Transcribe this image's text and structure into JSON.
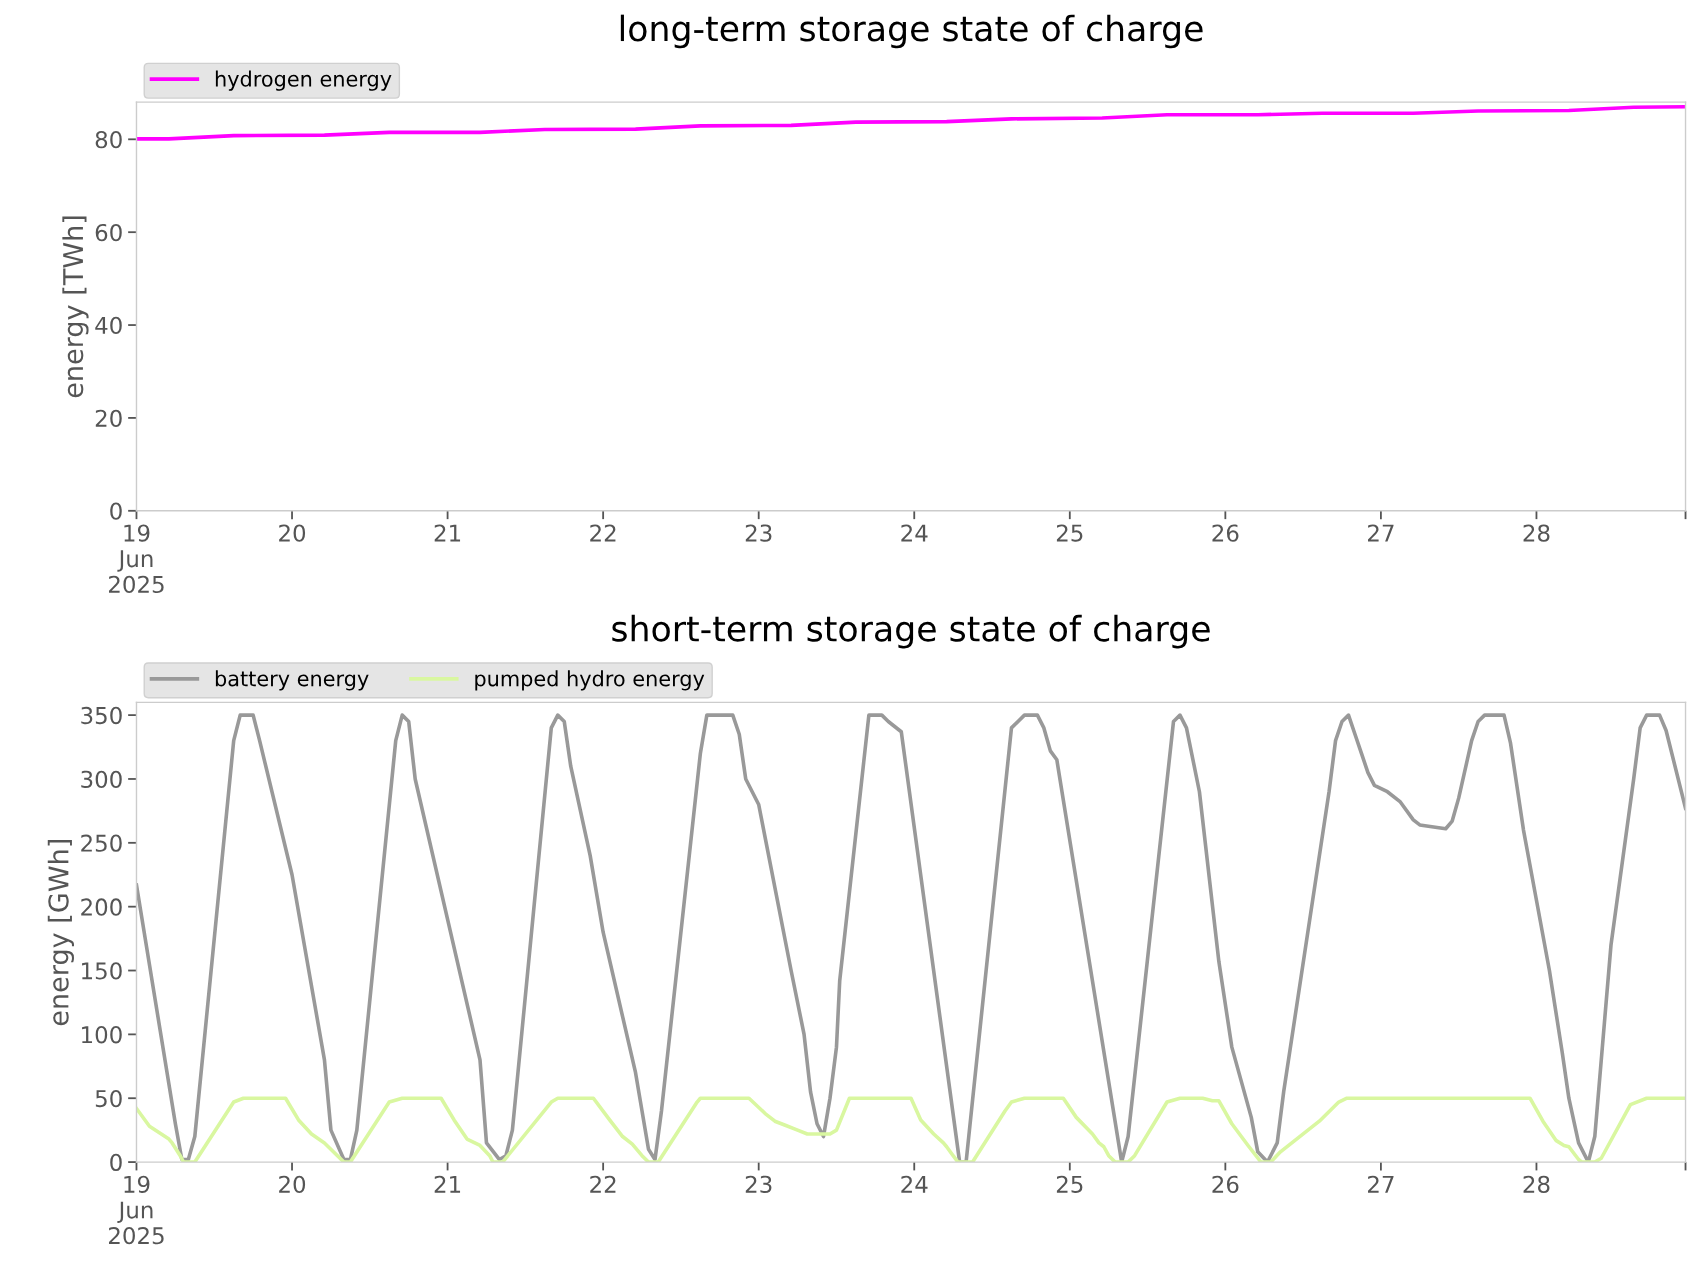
{
  "chart_data": [
    {
      "type": "line",
      "title": "long-term storage state of charge",
      "ylabel": "energy [TWh]",
      "legend": "top left",
      "xlim": [
        "2025-06-19",
        "2025-06-28T23:00"
      ],
      "xticks": [
        {
          "value": "2025-06-19",
          "label": "19\nJun\n2025"
        },
        {
          "value": "2025-06-20",
          "label": "20"
        },
        {
          "value": "2025-06-21",
          "label": "21"
        },
        {
          "value": "2025-06-22",
          "label": "22"
        },
        {
          "value": "2025-06-23",
          "label": "23"
        },
        {
          "value": "2025-06-24",
          "label": "24"
        },
        {
          "value": "2025-06-25",
          "label": "25"
        },
        {
          "value": "2025-06-26",
          "label": "26"
        },
        {
          "value": "2025-06-27",
          "label": "27"
        },
        {
          "value": "2025-06-28",
          "label": "28"
        },
        {
          "value": "2025-06-28T23:00",
          "label": null
        }
      ],
      "ylim": [
        0,
        88
      ],
      "yticks": [
        0,
        20,
        40,
        60,
        80
      ],
      "grid": false,
      "series": [
        {
          "name": "hydrogen energy",
          "color": "#ff00ff",
          "x": [
            "2025-06-19T00:00",
            "2025-06-19T05:00",
            "2025-06-19T15:00",
            "2025-06-20T05:00",
            "2025-06-20T15:00",
            "2025-06-21T05:00",
            "2025-06-21T15:00",
            "2025-06-22T05:00",
            "2025-06-22T15:00",
            "2025-06-23T05:00",
            "2025-06-23T15:00",
            "2025-06-24T05:00",
            "2025-06-24T15:00",
            "2025-06-25T05:00",
            "2025-06-25T15:00",
            "2025-06-26T05:00",
            "2025-06-26T15:00",
            "2025-06-27T05:00",
            "2025-06-27T15:00",
            "2025-06-28T05:00",
            "2025-06-28T15:00",
            "2025-06-28T23:00"
          ],
          "values": [
            80.1,
            80.1,
            80.8,
            80.9,
            81.5,
            81.5,
            82.1,
            82.2,
            82.9,
            83.0,
            83.7,
            83.8,
            84.4,
            84.6,
            85.3,
            85.3,
            85.6,
            85.6,
            86.1,
            86.2,
            86.9,
            87.0
          ]
        }
      ]
    },
    {
      "type": "line",
      "title": "short-term storage state of charge",
      "ylabel": "energy [GWh]",
      "legend": "top left",
      "xlim": [
        "2025-06-19",
        "2025-06-28T23:00"
      ],
      "xticks": [
        {
          "value": "2025-06-19",
          "label": "19\nJun\n2025"
        },
        {
          "value": "2025-06-20",
          "label": "20"
        },
        {
          "value": "2025-06-21",
          "label": "21"
        },
        {
          "value": "2025-06-22",
          "label": "22"
        },
        {
          "value": "2025-06-23",
          "label": "23"
        },
        {
          "value": "2025-06-24",
          "label": "24"
        },
        {
          "value": "2025-06-25",
          "label": "25"
        },
        {
          "value": "2025-06-26",
          "label": "26"
        },
        {
          "value": "2025-06-27",
          "label": "27"
        },
        {
          "value": "2025-06-28",
          "label": "28"
        },
        {
          "value": "2025-06-28T23:00",
          "label": null
        }
      ],
      "ylim": [
        0,
        360
      ],
      "yticks": [
        0,
        50,
        100,
        150,
        200,
        250,
        300,
        350
      ],
      "grid": false,
      "series": [
        {
          "name": "battery energy",
          "color": "#999999",
          "x": [
            "2025-06-19T00:00",
            "2025-06-19T06:00",
            "2025-06-19T07:00",
            "2025-06-19T08:00",
            "2025-06-19T09:00",
            "2025-06-19T15:00",
            "2025-06-19T16:00",
            "2025-06-19T18:00",
            "2025-06-19T19:00",
            "2025-06-20T00:00",
            "2025-06-20T05:00",
            "2025-06-20T06:00",
            "2025-06-20T08:00",
            "2025-06-20T09:00",
            "2025-06-20T10:00",
            "2025-06-20T16:00",
            "2025-06-20T17:00",
            "2025-06-20T18:00",
            "2025-06-20T19:00",
            "2025-06-21T00:00",
            "2025-06-21T05:00",
            "2025-06-21T06:00",
            "2025-06-21T08:00",
            "2025-06-21T09:00",
            "2025-06-21T10:00",
            "2025-06-21T16:00",
            "2025-06-21T17:00",
            "2025-06-21T18:00",
            "2025-06-21T19:00",
            "2025-06-21T22:00",
            "2025-06-22T00:00",
            "2025-06-22T05:00",
            "2025-06-22T06:00",
            "2025-06-22T07:00",
            "2025-06-22T08:00",
            "2025-06-22T09:00",
            "2025-06-22T15:00",
            "2025-06-22T16:00",
            "2025-06-22T20:00",
            "2025-06-22T21:00",
            "2025-06-22T22:00",
            "2025-06-23T00:00",
            "2025-06-23T05:00",
            "2025-06-23T07:00",
            "2025-06-23T08:00",
            "2025-06-23T09:00",
            "2025-06-23T10:00",
            "2025-06-23T11:00",
            "2025-06-23T12:00",
            "2025-06-23T12:30",
            "2025-06-23T17:00",
            "2025-06-23T19:00",
            "2025-06-23T20:00",
            "2025-06-23T22:00",
            "2025-06-24T07:00",
            "2025-06-24T08:00",
            "2025-06-24T15:00",
            "2025-06-24T17:00",
            "2025-06-24T19:00",
            "2025-06-24T20:00",
            "2025-06-24T21:00",
            "2025-06-24T22:00",
            "2025-06-25T08:00",
            "2025-06-25T09:00",
            "2025-06-25T16:00",
            "2025-06-25T17:00",
            "2025-06-25T18:00",
            "2025-06-25T20:00",
            "2025-06-25T23:00",
            "2025-06-26T01:00",
            "2025-06-26T04:00",
            "2025-06-26T05:00",
            "2025-06-26T06:30",
            "2025-06-26T08:00",
            "2025-06-26T09:00",
            "2025-06-26T16:00",
            "2025-06-26T17:00",
            "2025-06-26T18:00",
            "2025-06-26T19:00",
            "2025-06-26T20:00",
            "2025-06-26T21:00",
            "2025-06-26T22:00",
            "2025-06-26T23:00",
            "2025-06-27T01:00",
            "2025-06-27T03:00",
            "2025-06-27T05:00",
            "2025-06-27T06:00",
            "2025-06-27T10:00",
            "2025-06-27T11:00",
            "2025-06-27T12:00",
            "2025-06-27T14:00",
            "2025-06-27T15:00",
            "2025-06-27T16:00",
            "2025-06-27T19:00",
            "2025-06-27T20:00",
            "2025-06-27T22:00",
            "2025-06-28T00:00",
            "2025-06-28T02:00",
            "2025-06-28T04:00",
            "2025-06-28T05:00",
            "2025-06-28T06:30",
            "2025-06-28T08:00",
            "2025-06-28T09:00",
            "2025-06-28T11:30",
            "2025-06-28T15:00",
            "2025-06-28T16:00",
            "2025-06-28T17:00",
            "2025-06-28T19:00",
            "2025-06-28T20:00",
            "2025-06-28T23:00"
          ],
          "values": [
            217,
            30,
            2,
            2,
            20,
            330,
            350,
            350,
            330,
            225,
            80,
            25,
            2,
            2,
            25,
            330,
            350,
            345,
            300,
            190,
            80,
            15,
            2,
            5,
            25,
            340,
            350,
            345,
            310,
            240,
            180,
            70,
            40,
            10,
            2,
            40,
            320,
            350,
            350,
            335,
            300,
            280,
            150,
            100,
            55,
            30,
            20,
            50,
            90,
            142,
            350,
            350,
            345,
            337,
            0,
            0,
            340,
            350,
            350,
            340,
            322,
            315,
            0,
            20,
            345,
            350,
            340,
            290,
            157,
            90,
            35,
            8,
            0,
            15,
            55,
            290,
            330,
            345,
            350,
            335,
            320,
            305,
            295,
            290,
            282,
            268,
            264,
            261,
            267,
            285,
            330,
            345,
            350,
            350,
            328,
            260,
            205,
            150,
            85,
            50,
            15,
            0,
            20,
            170,
            300,
            340,
            350,
            350,
            338,
            277
          ]
        },
        {
          "name": "pumped hydro energy",
          "color": "#d9f7a0",
          "x": [
            "2025-06-19T00:00",
            "2025-06-19T02:00",
            "2025-06-19T05:00",
            "2025-06-19T05:30",
            "2025-06-19T06:45",
            "2025-06-19T07:15",
            "2025-06-19T09:00",
            "2025-06-19T15:00",
            "2025-06-19T16:30",
            "2025-06-19T23:00",
            "2025-06-20T01:00",
            "2025-06-20T03:00",
            "2025-06-20T05:00",
            "2025-06-20T08:00",
            "2025-06-20T09:00",
            "2025-06-20T15:00",
            "2025-06-20T17:00",
            "2025-06-20T23:00",
            "2025-06-21T01:00",
            "2025-06-21T03:00",
            "2025-06-21T05:00",
            "2025-06-21T06:30",
            "2025-06-21T07:00",
            "2025-06-21T08:30",
            "2025-06-21T16:00",
            "2025-06-21T17:00",
            "2025-06-21T22:30",
            "2025-06-22T01:00",
            "2025-06-22T03:00",
            "2025-06-22T04:30",
            "2025-06-22T06:00",
            "2025-06-22T07:00",
            "2025-06-22T08:30",
            "2025-06-22T14:30",
            "2025-06-22T15:00",
            "2025-06-22T22:30",
            "2025-06-23T01:00",
            "2025-06-23T02:30",
            "2025-06-23T04:00",
            "2025-06-23T06:00",
            "2025-06-23T07:30",
            "2025-06-23T11:00",
            "2025-06-23T12:00",
            "2025-06-23T14:00",
            "2025-06-23T23:30",
            "2025-06-24T01:00",
            "2025-06-24T03:00",
            "2025-06-24T04:30",
            "2025-06-24T05:00",
            "2025-06-24T06:00",
            "2025-06-24T06:45",
            "2025-06-24T09:00",
            "2025-06-24T14:00",
            "2025-06-24T15:00",
            "2025-06-24T17:00",
            "2025-06-24T23:00",
            "2025-06-25T01:00",
            "2025-06-25T03:30",
            "2025-06-25T04:30",
            "2025-06-25T05:15",
            "2025-06-25T06:00",
            "2025-06-25T07:00",
            "2025-06-25T09:00",
            "2025-06-25T10:00",
            "2025-06-25T15:00",
            "2025-06-25T17:00",
            "2025-06-25T20:30",
            "2025-06-25T22:00",
            "2025-06-25T23:00",
            "2025-06-26T01:00",
            "2025-06-26T03:30",
            "2025-06-26T05:30",
            "2025-06-26T07:00",
            "2025-06-26T08:30",
            "2025-06-26T14:30",
            "2025-06-26T17:30",
            "2025-06-26T18:45",
            "2025-06-27T23:00",
            "2025-06-28T01:00",
            "2025-06-28T03:00",
            "2025-06-28T04:15",
            "2025-06-28T05:00",
            "2025-06-28T06:30",
            "2025-06-28T07:00",
            "2025-06-28T09:00",
            "2025-06-28T10:00",
            "2025-06-28T14:30",
            "2025-06-28T17:00",
            "2025-06-28T23:00"
          ],
          "values": [
            42,
            28,
            18,
            15,
            5,
            0,
            0,
            47,
            50,
            50,
            33,
            22,
            15,
            0,
            0,
            47,
            50,
            50,
            33,
            18,
            13,
            5,
            0,
            0,
            47,
            50,
            50,
            33,
            20,
            14,
            5,
            0,
            0,
            47,
            50,
            50,
            38,
            32,
            29,
            25,
            22,
            22,
            25,
            50,
            50,
            33,
            22,
            15,
            12,
            5,
            0,
            0,
            40,
            47,
            50,
            50,
            35,
            22,
            15,
            12,
            5,
            0,
            0,
            5,
            47,
            50,
            50,
            48,
            48,
            30,
            13,
            0,
            0,
            8,
            32,
            47,
            50,
            50,
            32,
            17,
            13,
            12,
            2,
            0,
            0,
            3,
            45,
            50,
            50
          ]
        }
      ]
    }
  ]
}
